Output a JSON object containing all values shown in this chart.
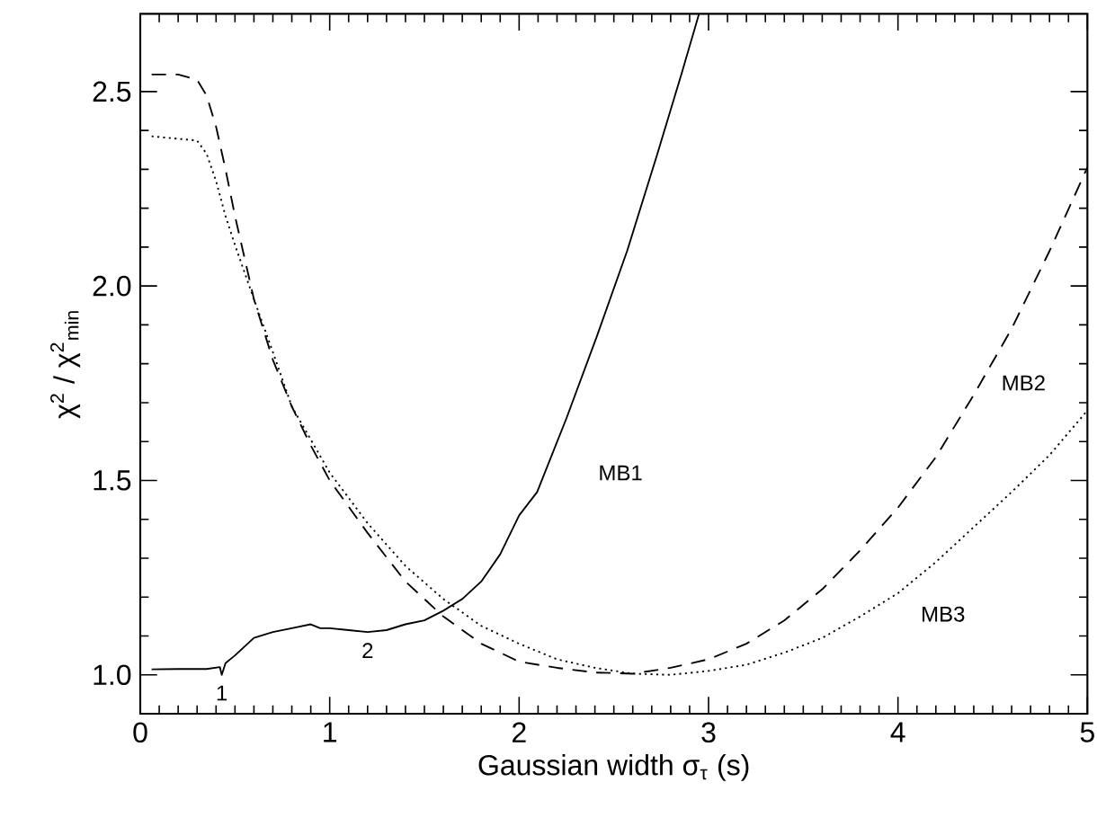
{
  "chart_data": {
    "type": "line",
    "xlabel": "Gaussian width σ$_{τ}$ (s)",
    "ylabel": "χ$^{2}$ / χ$^{2}$$_{min}$",
    "xlim": [
      0,
      5
    ],
    "ylim": [
      0.9,
      2.7
    ],
    "xticks": [
      0,
      1,
      2,
      3,
      4,
      5
    ],
    "yticks": [
      {
        "value": 1.0,
        "label": "1.0"
      },
      {
        "value": 1.5,
        "label": "1.5"
      },
      {
        "value": 2.0,
        "label": "2.0"
      },
      {
        "value": 2.5,
        "label": "2.5"
      }
    ],
    "grid": false,
    "legend": false,
    "marker": "none",
    "series": [
      {
        "name": "MB1",
        "color": "#000000",
        "line_style": "solid",
        "x": [
          0.06,
          0.2,
          0.35,
          0.42,
          0.43,
          0.45,
          0.5,
          0.6,
          0.7,
          0.8,
          0.9,
          0.95,
          1.0,
          1.1,
          1.2,
          1.3,
          1.4,
          1.5,
          1.6,
          1.7,
          1.8,
          1.9,
          2.0,
          2.095,
          2.25,
          2.41,
          2.57,
          2.73,
          2.86,
          2.95
        ],
        "values": [
          1.014,
          1.015,
          1.015,
          1.02,
          1.0,
          1.03,
          1.05,
          1.095,
          1.11,
          1.12,
          1.13,
          1.12,
          1.12,
          1.115,
          1.11,
          1.115,
          1.13,
          1.14,
          1.165,
          1.195,
          1.24,
          1.31,
          1.41,
          1.47,
          1.66,
          1.87,
          2.09,
          2.34,
          2.55,
          2.7
        ]
      },
      {
        "name": "MB2",
        "color": "#000000",
        "line_style": "dashed",
        "x": [
          0.06,
          0.2,
          0.3,
          0.35,
          0.4,
          0.45,
          0.5,
          0.6,
          0.7,
          0.8,
          0.9,
          1.0,
          1.2,
          1.4,
          1.6,
          1.8,
          2.0,
          2.2,
          2.4,
          2.6,
          2.8,
          3.0,
          3.2,
          3.4,
          3.6,
          3.8,
          4.0,
          4.2,
          4.4,
          4.6,
          4.8,
          5.0
        ],
        "values": [
          2.544,
          2.544,
          2.53,
          2.49,
          2.41,
          2.3,
          2.18,
          1.966,
          1.81,
          1.69,
          1.59,
          1.5,
          1.365,
          1.24,
          1.15,
          1.08,
          1.034,
          1.018,
          1.006,
          1.003,
          1.018,
          1.04,
          1.08,
          1.14,
          1.22,
          1.32,
          1.43,
          1.56,
          1.72,
          1.89,
          2.09,
          2.305
        ]
      },
      {
        "name": "MB3",
        "color": "#000000",
        "line_style": "dotted",
        "x": [
          0.06,
          0.3,
          0.35,
          0.4,
          0.45,
          0.5,
          0.6,
          0.7,
          0.8,
          1.0,
          1.2,
          1.4,
          1.6,
          1.8,
          2.0,
          2.2,
          2.4,
          2.6,
          2.8,
          3.0,
          3.2,
          3.4,
          3.6,
          3.8,
          4.0,
          4.2,
          4.4,
          4.6,
          4.8,
          5.0
        ],
        "values": [
          2.385,
          2.374,
          2.34,
          2.27,
          2.18,
          2.105,
          1.966,
          1.83,
          1.69,
          1.52,
          1.39,
          1.28,
          1.195,
          1.126,
          1.08,
          1.04,
          1.018,
          1.003,
          1.0,
          1.01,
          1.026,
          1.057,
          1.095,
          1.15,
          1.21,
          1.29,
          1.38,
          1.47,
          1.565,
          1.68
        ]
      }
    ],
    "annotations": [
      {
        "text": "1",
        "x": 0.43,
        "y": 1.0
      },
      {
        "text": "2",
        "x": 1.2,
        "y": 1.11
      }
    ]
  }
}
